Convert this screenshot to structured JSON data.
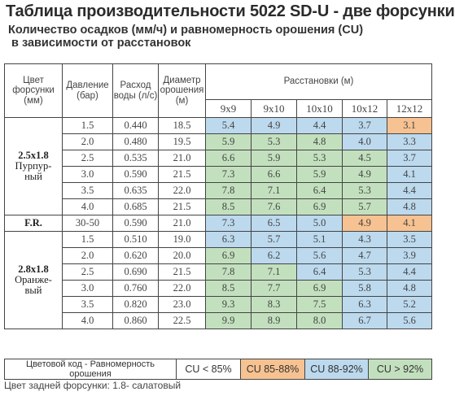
{
  "title": "Таблица производительности 5022 SD-U - две форсунки",
  "subtitle_line1": "Количество осадков (мм/ч) и равномерность орошения (CU)",
  "subtitle_line2": "в зависимости от расстановок",
  "headers": {
    "color": "Цвет форсунки (мм)",
    "pressure": "Давление (бар)",
    "flow": "Расход воды (л/с)",
    "diameter": "Диаметр орошения (м)",
    "spacings_title": "Расстановки (м)",
    "spacings": [
      "9x9",
      "9x10",
      "10x10",
      "10x12",
      "12x12"
    ]
  },
  "groups": [
    {
      "nozzle_size": "2.5x1.8",
      "nozzle_color": "Пурпур-ный",
      "rows": [
        {
          "pressure": "1.5",
          "flow": "0.440",
          "diameter": "18.5",
          "values": [
            "5.4",
            "4.9",
            "4.4",
            "3.7",
            "3.1"
          ],
          "cu": [
            "blue",
            "blue",
            "blue",
            "blue",
            "orange"
          ]
        },
        {
          "pressure": "2.0",
          "flow": "0.480",
          "diameter": "19.5",
          "values": [
            "5.9",
            "5.3",
            "4.8",
            "4.0",
            "3.3"
          ],
          "cu": [
            "green",
            "green",
            "green",
            "blue",
            "blue"
          ]
        },
        {
          "pressure": "2.5",
          "flow": "0.535",
          "diameter": "21.0",
          "values": [
            "6.6",
            "5.9",
            "5.3",
            "4.5",
            "3.7"
          ],
          "cu": [
            "green",
            "green",
            "green",
            "green",
            "blue"
          ]
        },
        {
          "pressure": "3.0",
          "flow": "0.590",
          "diameter": "21.5",
          "values": [
            "7.3",
            "6.6",
            "5.9",
            "4.9",
            "4.1"
          ],
          "cu": [
            "green",
            "green",
            "green",
            "green",
            "blue"
          ]
        },
        {
          "pressure": "3.5",
          "flow": "0.635",
          "diameter": "22.0",
          "values": [
            "7.8",
            "7.1",
            "6.4",
            "5.3",
            "4.4"
          ],
          "cu": [
            "green",
            "green",
            "green",
            "green",
            "blue"
          ]
        },
        {
          "pressure": "4.0",
          "flow": "0.685",
          "diameter": "21.5",
          "values": [
            "8.5",
            "7.6",
            "6.9",
            "5.7",
            "4.8"
          ],
          "cu": [
            "green",
            "green",
            "green",
            "green",
            "blue"
          ]
        }
      ]
    },
    {
      "nozzle_size": "F.R.",
      "nozzle_color": "",
      "rows": [
        {
          "pressure": "30-50",
          "flow": "0.590",
          "diameter": "21.0",
          "values": [
            "7.3",
            "6.5",
            "5.0",
            "4.9",
            "4.1"
          ],
          "cu": [
            "blue",
            "blue",
            "blue",
            "orange",
            "orange"
          ]
        }
      ]
    },
    {
      "nozzle_size": "2.8x1.8",
      "nozzle_color": "Оранже-вый",
      "rows": [
        {
          "pressure": "1.5",
          "flow": "0.510",
          "diameter": "19.0",
          "values": [
            "6.3",
            "5.7",
            "5.1",
            "4.3",
            "3.5"
          ],
          "cu": [
            "blue",
            "blue",
            "blue",
            "blue",
            "blue"
          ]
        },
        {
          "pressure": "2.0",
          "flow": "0.620",
          "diameter": "20.0",
          "values": [
            "6.9",
            "6.2",
            "5.6",
            "4.7",
            "3.9"
          ],
          "cu": [
            "green",
            "blue",
            "blue",
            "blue",
            "blue"
          ]
        },
        {
          "pressure": "2.5",
          "flow": "0.690",
          "diameter": "21.5",
          "values": [
            "7.8",
            "7.1",
            "6.4",
            "5.3",
            "4.4"
          ],
          "cu": [
            "green",
            "green",
            "blue",
            "blue",
            "blue"
          ]
        },
        {
          "pressure": "3.0",
          "flow": "0.760",
          "diameter": "22.0",
          "values": [
            "8.5",
            "7.7",
            "6.9",
            "5.8",
            "4.8"
          ],
          "cu": [
            "green",
            "green",
            "green",
            "blue",
            "blue"
          ]
        },
        {
          "pressure": "3.5",
          "flow": "0.820",
          "diameter": "23.0",
          "values": [
            "9.3",
            "8.3",
            "7.5",
            "6.3",
            "5.2"
          ],
          "cu": [
            "green",
            "green",
            "green",
            "blue",
            "blue"
          ]
        },
        {
          "pressure": "4.0",
          "flow": "0.860",
          "diameter": "22.5",
          "values": [
            "9.9",
            "8.9",
            "8.0",
            "6.7",
            "5.6"
          ],
          "cu": [
            "green",
            "green",
            "green",
            "blue",
            "blue"
          ]
        }
      ]
    }
  ],
  "legend": {
    "label": "Цветовой код - Равномерность орошения",
    "items": [
      {
        "text": "CU < 85%",
        "color": "#ffffff"
      },
      {
        "text": "CU 85-88%",
        "color": "#f7c291"
      },
      {
        "text": "CU 88-92%",
        "color": "#bcd9ee"
      },
      {
        "text": "CU > 92%",
        "color": "#c3e0be"
      }
    ]
  },
  "footnote": "Цвет задней форсунки: 1.8- салатовый",
  "colors": {
    "blue": "#bcd9ee",
    "green": "#c3e0be",
    "orange": "#f7c291"
  }
}
